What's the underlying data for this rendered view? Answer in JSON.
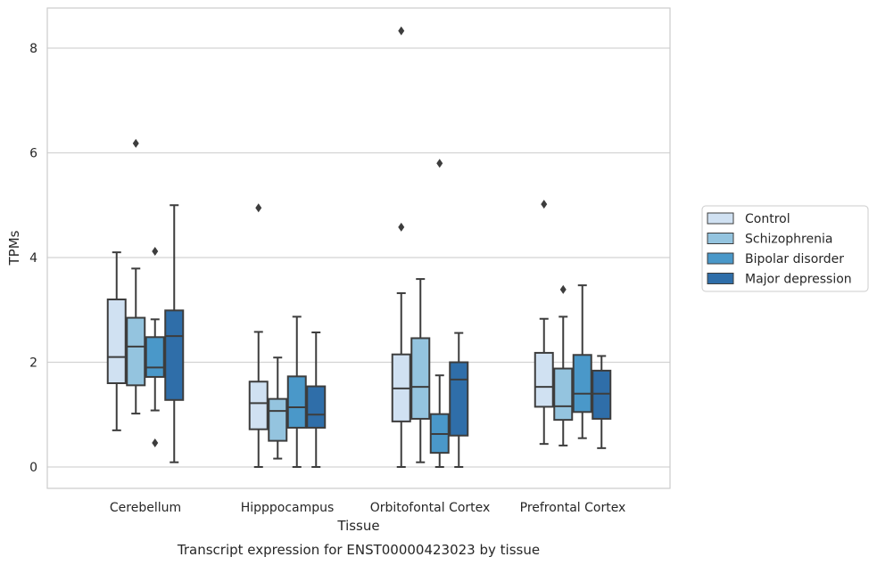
{
  "chart_data": {
    "type": "box",
    "categories": [
      "Cerebellum",
      "Hipppocampus",
      "Orbitofontal Cortex",
      "Prefrontal Cortex"
    ],
    "xlabel": "Tissue",
    "ylabel": "TPMs",
    "caption": "Transcript expression for ENST00000423023 by tissue",
    "ylim": [
      -0.4,
      8.75
    ],
    "yticks": [
      0,
      2,
      4,
      6,
      8
    ],
    "grid": "horizontal",
    "legend_position": "right",
    "series": [
      {
        "name": "Control",
        "color": "#d0e1f2",
        "boxes": [
          {
            "low": 0.7,
            "q1": 1.6,
            "median": 2.1,
            "q3": 3.2,
            "high": 4.1,
            "outliers": []
          },
          {
            "low": 0.0,
            "q1": 0.72,
            "median": 1.22,
            "q3": 1.63,
            "high": 2.58,
            "outliers": [
              4.95
            ]
          },
          {
            "low": 0.0,
            "q1": 0.87,
            "median": 1.5,
            "q3": 2.15,
            "high": 3.32,
            "outliers": [
              4.58,
              8.33
            ]
          },
          {
            "low": 0.44,
            "q1": 1.15,
            "median": 1.53,
            "q3": 2.18,
            "high": 2.83,
            "outliers": [
              5.02
            ]
          }
        ]
      },
      {
        "name": "Schizophrenia",
        "color": "#94c4df",
        "boxes": [
          {
            "low": 1.02,
            "q1": 1.56,
            "median": 2.3,
            "q3": 2.85,
            "high": 3.79,
            "outliers": [
              6.18
            ]
          },
          {
            "low": 0.16,
            "q1": 0.5,
            "median": 1.07,
            "q3": 1.3,
            "high": 2.09,
            "outliers": []
          },
          {
            "low": 0.09,
            "q1": 0.92,
            "median": 1.53,
            "q3": 2.46,
            "high": 3.59,
            "outliers": []
          },
          {
            "low": 0.41,
            "q1": 0.9,
            "median": 1.16,
            "q3": 1.88,
            "high": 2.87,
            "outliers": [
              3.39
            ]
          }
        ]
      },
      {
        "name": "Bipolar disorder",
        "color": "#4a98c9",
        "boxes": [
          {
            "low": 1.08,
            "q1": 1.72,
            "median": 1.9,
            "q3": 2.48,
            "high": 2.82,
            "outliers": [
              4.12,
              0.46
            ]
          },
          {
            "low": 0.0,
            "q1": 0.75,
            "median": 1.14,
            "q3": 1.73,
            "high": 2.87,
            "outliers": []
          },
          {
            "low": 0.0,
            "q1": 0.27,
            "median": 0.63,
            "q3": 1.01,
            "high": 1.75,
            "outliers": [
              5.8
            ]
          },
          {
            "low": 0.55,
            "q1": 1.05,
            "median": 1.4,
            "q3": 2.14,
            "high": 3.47,
            "outliers": []
          }
        ]
      },
      {
        "name": "Major depression",
        "color": "#2f6ea9",
        "boxes": [
          {
            "low": 0.09,
            "q1": 1.28,
            "median": 2.5,
            "q3": 2.99,
            "high": 5.0,
            "outliers": []
          },
          {
            "low": 0.0,
            "q1": 0.75,
            "median": 1.0,
            "q3": 1.54,
            "high": 2.57,
            "outliers": []
          },
          {
            "low": 0.0,
            "q1": 0.6,
            "median": 1.67,
            "q3": 2.0,
            "high": 2.56,
            "outliers": []
          },
          {
            "low": 0.36,
            "q1": 0.92,
            "median": 1.4,
            "q3": 1.84,
            "high": 2.12,
            "outliers": []
          }
        ]
      }
    ]
  }
}
